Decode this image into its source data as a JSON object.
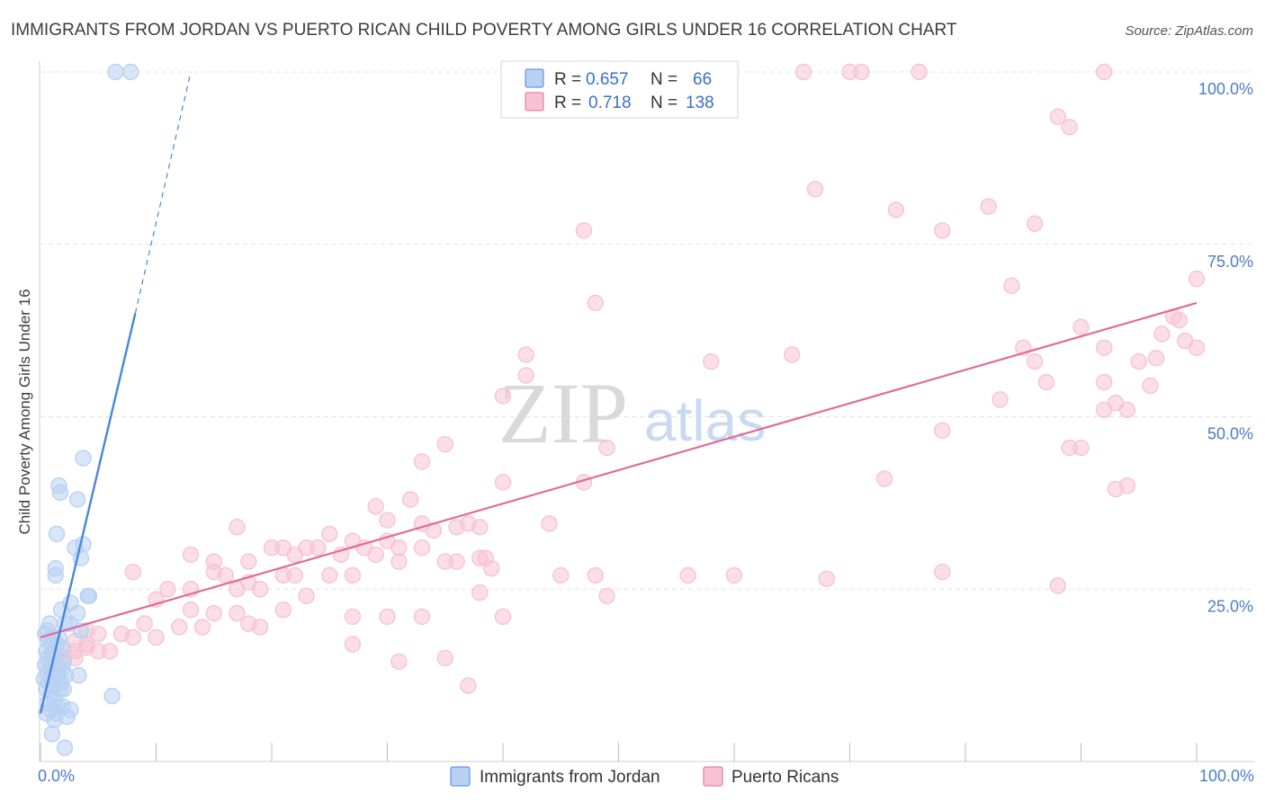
{
  "chart_data": {
    "type": "scatter",
    "title": "IMMIGRANTS FROM JORDAN VS PUERTO RICAN CHILD POVERTY AMONG GIRLS UNDER 16 CORRELATION CHART",
    "source": "Source: ZipAtlas.com",
    "ylabel": "Child Poverty Among Girls Under 16",
    "xlim": [
      0,
      100
    ],
    "ylim": [
      0,
      100
    ],
    "xtick_labels": [
      "0.0%",
      "100.0%"
    ],
    "ytick_values": [
      25,
      50,
      75,
      100
    ],
    "ytick_labels": [
      "25.0%",
      "50.0%",
      "75.0%",
      "100.0%"
    ],
    "watermark": {
      "part1": "ZIP",
      "part2": "atlas"
    },
    "legend": {
      "r_label": "R =",
      "n_label": "N =",
      "entries": [
        {
          "r": "0.657",
          "n": "66"
        },
        {
          "r": "0.718",
          "n": "138"
        }
      ]
    },
    "series": [
      {
        "name": "Immigrants from Jordan",
        "color": "#4a86d8",
        "fill": "#b8d1f3",
        "trend": {
          "x0": 0,
          "y0": 7,
          "x1": 8.2,
          "y1": 65,
          "dash_to_x": 13,
          "dash_to_y": 100
        },
        "points": [
          [
            6.5,
            100
          ],
          [
            7.8,
            100
          ],
          [
            3.7,
            44
          ],
          [
            1.6,
            40
          ],
          [
            1.7,
            39
          ],
          [
            3.2,
            38
          ],
          [
            1.4,
            33
          ],
          [
            3.7,
            31.5
          ],
          [
            3.0,
            31
          ],
          [
            3.5,
            29.5
          ],
          [
            1.3,
            28
          ],
          [
            1.3,
            27
          ],
          [
            4.1,
            24
          ],
          [
            4.2,
            24
          ],
          [
            2.6,
            23
          ],
          [
            1.8,
            22
          ],
          [
            3.2,
            21.5
          ],
          [
            2.1,
            20
          ],
          [
            2.5,
            20
          ],
          [
            0.8,
            20
          ],
          [
            0.6,
            19
          ],
          [
            3.5,
            19
          ],
          [
            0.4,
            18.5
          ],
          [
            1.1,
            18
          ],
          [
            1.6,
            18
          ],
          [
            0.7,
            17.5
          ],
          [
            0.9,
            17
          ],
          [
            1.4,
            17
          ],
          [
            1.9,
            16.5
          ],
          [
            0.5,
            16
          ],
          [
            1.0,
            15.5
          ],
          [
            0.6,
            15
          ],
          [
            1.2,
            15
          ],
          [
            2.0,
            14.5
          ],
          [
            0.4,
            14
          ],
          [
            0.8,
            14
          ],
          [
            1.5,
            13.5
          ],
          [
            1.9,
            13.5
          ],
          [
            0.6,
            13
          ],
          [
            1.0,
            13
          ],
          [
            1.5,
            12.5
          ],
          [
            2.2,
            12.5
          ],
          [
            3.3,
            12.5
          ],
          [
            0.3,
            12
          ],
          [
            0.9,
            12
          ],
          [
            1.4,
            12
          ],
          [
            0.7,
            11.5
          ],
          [
            1.8,
            11.5
          ],
          [
            1.1,
            11
          ],
          [
            0.5,
            10.5
          ],
          [
            1.7,
            10.5
          ],
          [
            2.0,
            10.5
          ],
          [
            0.9,
            10
          ],
          [
            6.2,
            9.5
          ],
          [
            1.2,
            9
          ],
          [
            0.6,
            8.5
          ],
          [
            1.5,
            8
          ],
          [
            1.9,
            8
          ],
          [
            0.9,
            7.5
          ],
          [
            2.6,
            7.5
          ],
          [
            0.5,
            7
          ],
          [
            1.4,
            7
          ],
          [
            2.3,
            6.5
          ],
          [
            1.2,
            6
          ],
          [
            1.0,
            4
          ],
          [
            2.1,
            2
          ]
        ]
      },
      {
        "name": "Puerto Ricans",
        "color": "#e06b98",
        "fill": "#f7c3d4",
        "trend": {
          "x0": 0,
          "y0": 18,
          "x1": 100,
          "y1": 66.5
        },
        "points": [
          [
            49,
            100
          ],
          [
            66,
            100
          ],
          [
            70,
            100
          ],
          [
            71,
            100
          ],
          [
            76,
            100
          ],
          [
            92,
            100
          ],
          [
            88,
            93.5
          ],
          [
            89,
            92
          ],
          [
            67,
            83
          ],
          [
            74,
            80
          ],
          [
            82,
            80.5
          ],
          [
            86,
            78
          ],
          [
            78,
            77
          ],
          [
            47,
            77
          ],
          [
            48,
            66.5
          ],
          [
            100,
            70
          ],
          [
            84,
            69
          ],
          [
            98,
            64.5
          ],
          [
            98.5,
            64
          ],
          [
            97,
            62
          ],
          [
            90,
            63
          ],
          [
            99,
            61
          ],
          [
            42,
            59
          ],
          [
            58,
            58
          ],
          [
            65,
            59
          ],
          [
            92,
            60
          ],
          [
            85,
            60
          ],
          [
            86,
            58
          ],
          [
            95,
            58
          ],
          [
            96.5,
            58.5
          ],
          [
            100,
            60
          ],
          [
            42,
            56
          ],
          [
            40,
            53
          ],
          [
            83,
            52.5
          ],
          [
            92,
            55
          ],
          [
            96,
            54.5
          ],
          [
            87,
            55
          ],
          [
            92,
            51
          ],
          [
            94,
            51
          ],
          [
            93,
            52
          ],
          [
            78,
            48
          ],
          [
            35,
            46
          ],
          [
            49,
            45.5
          ],
          [
            89,
            45.5
          ],
          [
            90,
            45.5
          ],
          [
            33,
            43.5
          ],
          [
            73,
            41
          ],
          [
            40,
            40.5
          ],
          [
            47,
            40.5
          ],
          [
            93,
            39.5
          ],
          [
            94,
            40
          ],
          [
            32,
            38
          ],
          [
            29,
            37
          ],
          [
            30,
            35
          ],
          [
            33,
            34.5
          ],
          [
            36,
            34
          ],
          [
            44,
            34.5
          ],
          [
            34,
            33.5
          ],
          [
            37,
            34.5
          ],
          [
            38,
            34
          ],
          [
            17,
            34
          ],
          [
            25,
            33
          ],
          [
            27,
            32
          ],
          [
            30,
            32
          ],
          [
            20,
            31
          ],
          [
            21,
            31
          ],
          [
            22,
            30
          ],
          [
            23,
            31
          ],
          [
            24,
            31
          ],
          [
            26,
            30
          ],
          [
            28,
            31
          ],
          [
            29,
            30
          ],
          [
            31,
            31
          ],
          [
            33,
            31
          ],
          [
            13,
            30
          ],
          [
            15,
            29
          ],
          [
            18,
            29
          ],
          [
            31,
            29
          ],
          [
            36,
            29
          ],
          [
            38,
            29.5
          ],
          [
            38.5,
            29.5
          ],
          [
            35,
            29
          ],
          [
            39,
            28
          ],
          [
            8,
            27.5
          ],
          [
            15,
            27.5
          ],
          [
            16,
            27
          ],
          [
            18,
            26
          ],
          [
            21,
            27
          ],
          [
            22,
            27
          ],
          [
            25,
            27
          ],
          [
            27,
            27
          ],
          [
            45,
            27
          ],
          [
            48,
            27
          ],
          [
            56,
            27
          ],
          [
            60,
            27
          ],
          [
            68,
            26.5
          ],
          [
            78,
            27.5
          ],
          [
            88,
            25.5
          ],
          [
            11,
            25
          ],
          [
            13,
            25
          ],
          [
            17,
            25
          ],
          [
            19,
            25
          ],
          [
            23,
            24
          ],
          [
            38,
            24.5
          ],
          [
            49,
            24
          ],
          [
            10,
            23.5
          ],
          [
            13,
            22
          ],
          [
            15,
            21.5
          ],
          [
            17,
            21.5
          ],
          [
            21,
            22
          ],
          [
            27,
            21
          ],
          [
            30,
            21
          ],
          [
            33,
            21
          ],
          [
            40,
            21
          ],
          [
            9,
            20
          ],
          [
            12,
            19.5
          ],
          [
            14,
            19.5
          ],
          [
            18,
            20
          ],
          [
            19,
            19.5
          ],
          [
            4,
            19
          ],
          [
            5,
            18.5
          ],
          [
            7,
            18.5
          ],
          [
            8,
            18
          ],
          [
            10,
            18
          ],
          [
            3,
            17.5
          ],
          [
            4,
            17
          ],
          [
            6,
            16
          ],
          [
            2,
            16
          ],
          [
            3,
            16
          ],
          [
            4,
            16.5
          ],
          [
            5,
            16
          ],
          [
            1,
            15
          ],
          [
            2,
            15
          ],
          [
            3,
            15
          ],
          [
            27,
            17
          ],
          [
            31,
            14.5
          ],
          [
            35,
            15
          ],
          [
            37,
            11
          ]
        ]
      }
    ]
  }
}
